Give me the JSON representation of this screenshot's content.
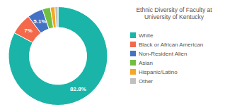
{
  "chart_data": {
    "type": "pie",
    "title": "Ethnic Diversity of Faculty at\nUniversity of Kentucky",
    "categories": [
      "White",
      "Black or African American",
      "Non-Resident Alien",
      "Asian",
      "Hispanic/Latino",
      "Other"
    ],
    "values": [
      82.8,
      7.0,
      5.1,
      2.6,
      1.5,
      1.0
    ],
    "value_labels": [
      "82.8%",
      "7%",
      "5.1%",
      null,
      null,
      null
    ],
    "colors": [
      "#1ab5a8",
      "#f4694b",
      "#4472c4",
      "#70c040",
      "#f5a623",
      "#c0c0c0"
    ],
    "data_labels": true,
    "legend": "right"
  }
}
